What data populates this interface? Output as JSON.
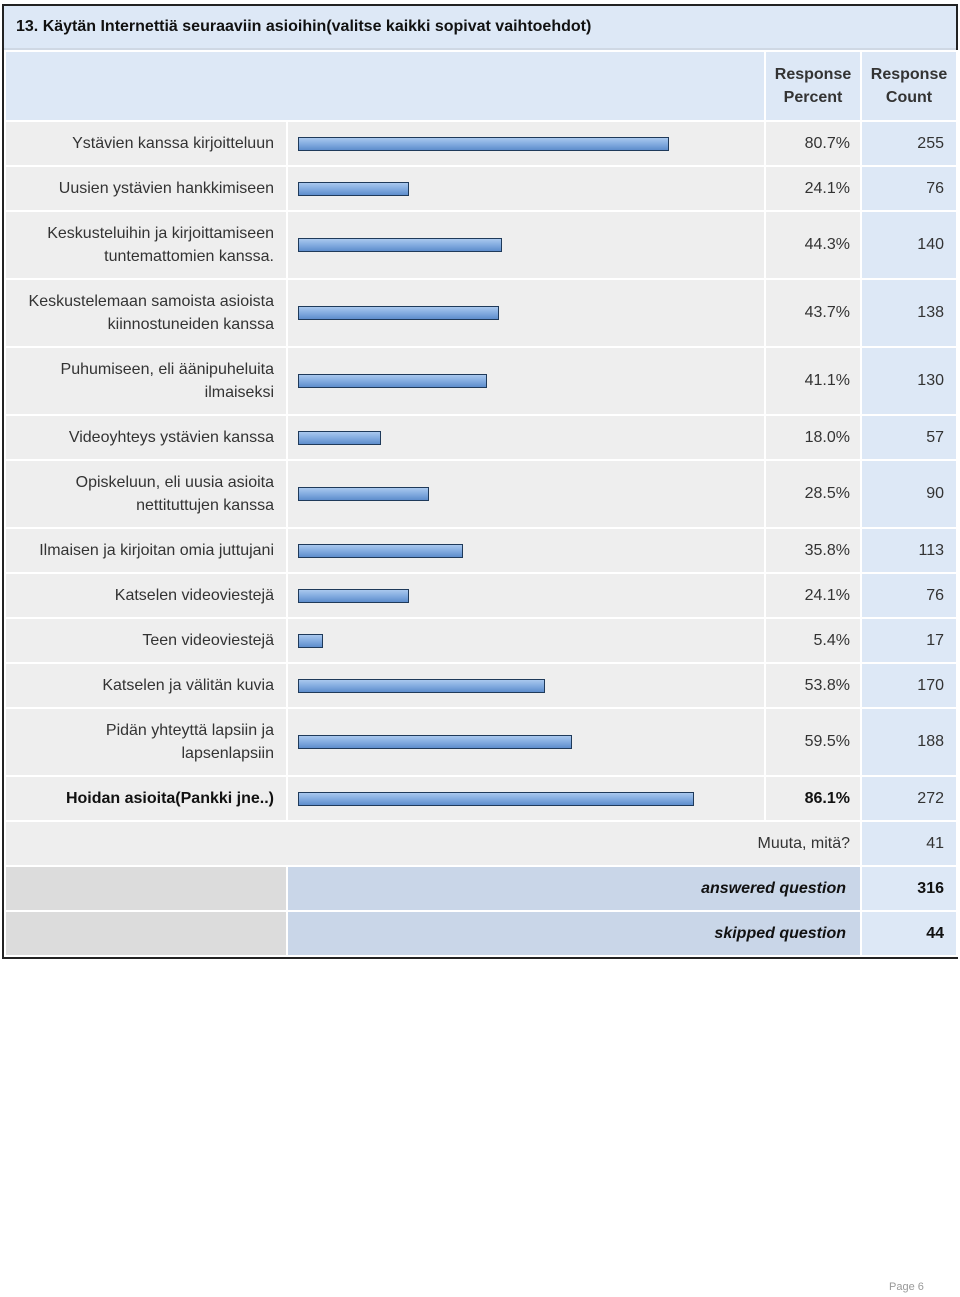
{
  "question": {
    "title": "13. Käytän Internettiä seuraaviin asioihin(valitse kaikki sopivat vaihtoehdot)"
  },
  "headers": {
    "percent_line1": "Response",
    "percent_line2": "Percent",
    "count_line1": "Response",
    "count_line2": "Count"
  },
  "rows": [
    {
      "label": "Ystävien kanssa kirjoitteluun",
      "percent": "80.7%",
      "percent_value": 80.7,
      "count": "255"
    },
    {
      "label": "Uusien ystävien hankkimiseen",
      "percent": "24.1%",
      "percent_value": 24.1,
      "count": "76"
    },
    {
      "label": "Keskusteluihin ja kirjoittamiseen tuntemattomien kanssa.",
      "percent": "44.3%",
      "percent_value": 44.3,
      "count": "140"
    },
    {
      "label": "Keskustelemaan samoista asioista kiinnostuneiden kanssa",
      "percent": "43.7%",
      "percent_value": 43.7,
      "count": "138"
    },
    {
      "label": "Puhumiseen, eli äänipuheluita ilmaiseksi",
      "percent": "41.1%",
      "percent_value": 41.1,
      "count": "130"
    },
    {
      "label": "Videoyhteys ystävien kanssa",
      "percent": "18.0%",
      "percent_value": 18.0,
      "count": "57"
    },
    {
      "label": "Opiskeluun, eli uusia asioita nettituttujen kanssa",
      "percent": "28.5%",
      "percent_value": 28.5,
      "count": "90"
    },
    {
      "label": "Ilmaisen ja kirjoitan omia juttujani",
      "percent": "35.8%",
      "percent_value": 35.8,
      "count": "113"
    },
    {
      "label": "Katselen videoviestejä",
      "percent": "24.1%",
      "percent_value": 24.1,
      "count": "76"
    },
    {
      "label": "Teen videoviestejä",
      "percent": "5.4%",
      "percent_value": 5.4,
      "count": "17"
    },
    {
      "label": "Katselen ja välitän kuvia",
      "percent": "53.8%",
      "percent_value": 53.8,
      "count": "170"
    },
    {
      "label": "Pidän yhteyttä lapsiin ja lapsenlapsiin",
      "percent": "59.5%",
      "percent_value": 59.5,
      "count": "188"
    },
    {
      "label": "Hoidan asioita(Pankki jne..)",
      "percent": "86.1%",
      "percent_value": 86.1,
      "count": "272",
      "bold": true
    }
  ],
  "other": {
    "label": "Muuta, mitä?",
    "count": "41"
  },
  "summary": {
    "answered_label": "answered question",
    "answered_value": "316",
    "skipped_label": "skipped question",
    "skipped_value": "44"
  },
  "footer": {
    "page": "Page 6"
  }
}
